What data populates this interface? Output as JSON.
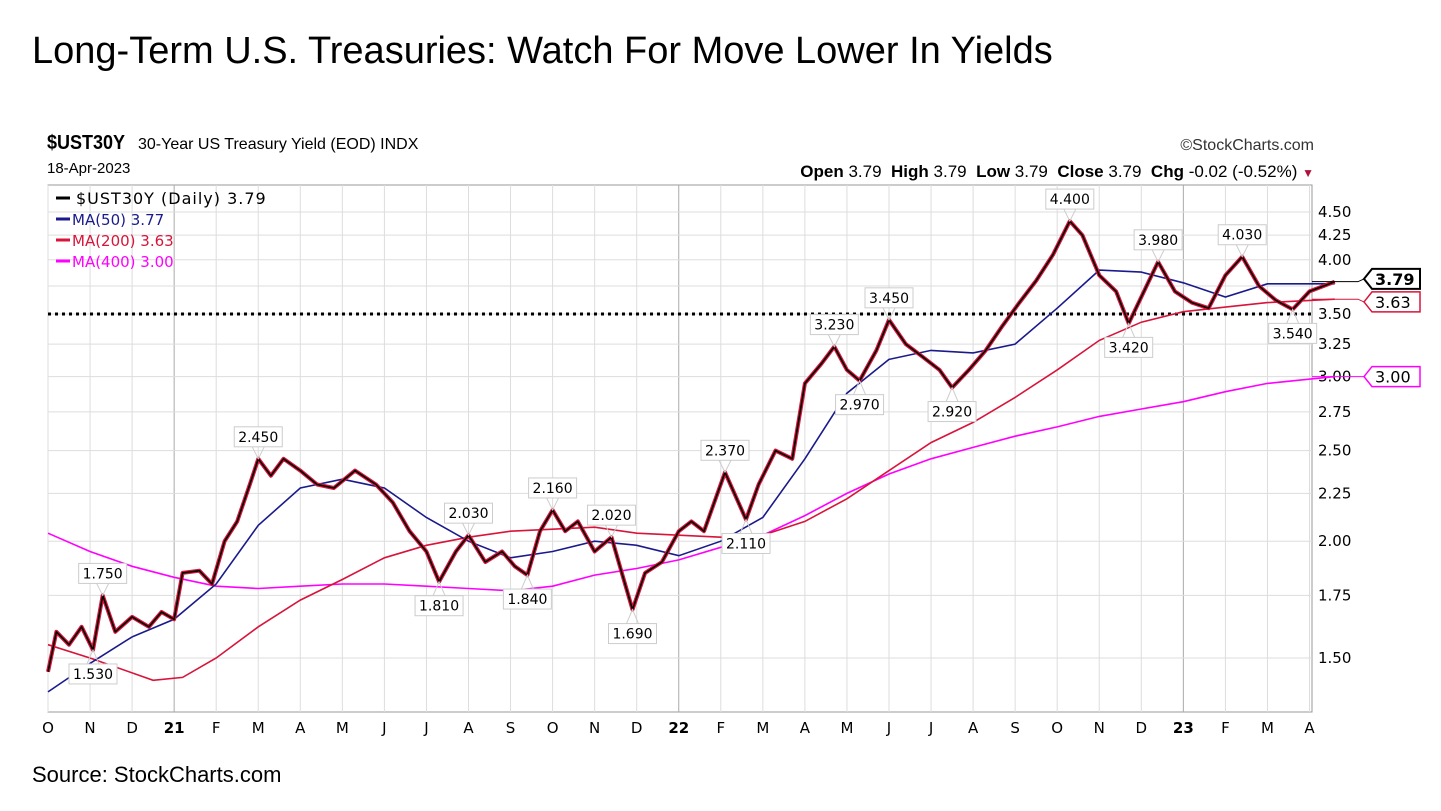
{
  "title": "Long-Term U.S. Treasuries: Watch For Move Lower In Yields",
  "source": "Source: StockCharts.com",
  "header": {
    "symbol": "$UST30Y",
    "description": "30-Year US Treasury Yield (EOD) INDX",
    "date": "18-Apr-2023",
    "brand": "©StockCharts.com",
    "open_label": "Open",
    "open": "3.79",
    "high_label": "High",
    "high": "3.79",
    "low_label": "Low",
    "low": "3.79",
    "close_label": "Close",
    "close": "3.79",
    "chg_label": "Chg",
    "chg": "-0.02 (-0.52%)"
  },
  "chart_data": {
    "type": "line",
    "yscale": "log",
    "ylim": [
      1.38,
      4.75
    ],
    "xlim": [
      0,
      31.3
    ],
    "x_unit": "months since Oct 2020",
    "grid": true,
    "legend_position": "top-left",
    "yticks": [
      1.5,
      1.75,
      2.0,
      2.25,
      2.5,
      2.75,
      3.0,
      3.25,
      3.5,
      3.75,
      4.0,
      4.25,
      4.5
    ],
    "ytick_labels": [
      "1.50",
      "1.75",
      "2.00",
      "2.25",
      "2.50",
      "2.75",
      "3.00",
      "3.25",
      "3.50",
      "",
      "4.00",
      "4.25",
      "4.50"
    ],
    "xticks": [
      {
        "m": 0,
        "label": "O"
      },
      {
        "m": 1,
        "label": "N"
      },
      {
        "m": 2,
        "label": "D"
      },
      {
        "m": 3,
        "label": "21",
        "bold": true
      },
      {
        "m": 4,
        "label": "F"
      },
      {
        "m": 5,
        "label": "M"
      },
      {
        "m": 6,
        "label": "A"
      },
      {
        "m": 7,
        "label": "M"
      },
      {
        "m": 8,
        "label": "J"
      },
      {
        "m": 9,
        "label": "J"
      },
      {
        "m": 10,
        "label": "A"
      },
      {
        "m": 11,
        "label": "S"
      },
      {
        "m": 12,
        "label": "O"
      },
      {
        "m": 13,
        "label": "N"
      },
      {
        "m": 14,
        "label": "D"
      },
      {
        "m": 15,
        "label": "22",
        "bold": true
      },
      {
        "m": 16,
        "label": "F"
      },
      {
        "m": 17,
        "label": "M"
      },
      {
        "m": 18,
        "label": "A"
      },
      {
        "m": 19,
        "label": "M"
      },
      {
        "m": 20,
        "label": "J"
      },
      {
        "m": 21,
        "label": "J"
      },
      {
        "m": 22,
        "label": "A"
      },
      {
        "m": 23,
        "label": "S"
      },
      {
        "m": 24,
        "label": "O"
      },
      {
        "m": 25,
        "label": "N"
      },
      {
        "m": 26,
        "label": "D"
      },
      {
        "m": 27,
        "label": "23",
        "bold": true
      },
      {
        "m": 28,
        "label": "F"
      },
      {
        "m": 29,
        "label": "M"
      },
      {
        "m": 30,
        "label": "A"
      }
    ],
    "reference_line": 3.5,
    "series": [
      {
        "name": "$UST30Y (Daily) 3.79",
        "color": "#000000",
        "points": [
          [
            0,
            1.45
          ],
          [
            0.2,
            1.6
          ],
          [
            0.5,
            1.55
          ],
          [
            0.8,
            1.62
          ],
          [
            1.07,
            1.53
          ],
          [
            1.3,
            1.75
          ],
          [
            1.6,
            1.6
          ],
          [
            2.0,
            1.66
          ],
          [
            2.4,
            1.62
          ],
          [
            2.7,
            1.68
          ],
          [
            3.0,
            1.65
          ],
          [
            3.2,
            1.85
          ],
          [
            3.6,
            1.86
          ],
          [
            3.9,
            1.8
          ],
          [
            4.2,
            2.0
          ],
          [
            4.5,
            2.1
          ],
          [
            4.8,
            2.3
          ],
          [
            5.0,
            2.45
          ],
          [
            5.3,
            2.35
          ],
          [
            5.6,
            2.45
          ],
          [
            6.0,
            2.38
          ],
          [
            6.4,
            2.3
          ],
          [
            6.8,
            2.28
          ],
          [
            7.3,
            2.38
          ],
          [
            7.8,
            2.3
          ],
          [
            8.2,
            2.2
          ],
          [
            8.6,
            2.05
          ],
          [
            9.0,
            1.95
          ],
          [
            9.3,
            1.81
          ],
          [
            9.7,
            1.95
          ],
          [
            10.0,
            2.03
          ],
          [
            10.4,
            1.9
          ],
          [
            10.8,
            1.95
          ],
          [
            11.1,
            1.88
          ],
          [
            11.4,
            1.84
          ],
          [
            11.7,
            2.05
          ],
          [
            12.0,
            2.16
          ],
          [
            12.3,
            2.05
          ],
          [
            12.6,
            2.1
          ],
          [
            13.0,
            1.95
          ],
          [
            13.4,
            2.02
          ],
          [
            13.6,
            1.88
          ],
          [
            13.9,
            1.69
          ],
          [
            14.2,
            1.85
          ],
          [
            14.6,
            1.9
          ],
          [
            15.0,
            2.05
          ],
          [
            15.3,
            2.1
          ],
          [
            15.6,
            2.05
          ],
          [
            16.1,
            2.37
          ],
          [
            16.6,
            2.11
          ],
          [
            16.9,
            2.3
          ],
          [
            17.3,
            2.5
          ],
          [
            17.7,
            2.45
          ],
          [
            18.0,
            2.95
          ],
          [
            18.4,
            3.1
          ],
          [
            18.7,
            3.23
          ],
          [
            19.0,
            3.05
          ],
          [
            19.3,
            2.97
          ],
          [
            19.7,
            3.2
          ],
          [
            20.0,
            3.45
          ],
          [
            20.4,
            3.25
          ],
          [
            20.8,
            3.15
          ],
          [
            21.2,
            3.05
          ],
          [
            21.5,
            2.92
          ],
          [
            21.9,
            3.05
          ],
          [
            22.3,
            3.2
          ],
          [
            22.7,
            3.4
          ],
          [
            23.1,
            3.6
          ],
          [
            23.5,
            3.8
          ],
          [
            23.9,
            4.05
          ],
          [
            24.3,
            4.4
          ],
          [
            24.6,
            4.25
          ],
          [
            25.0,
            3.85
          ],
          [
            25.4,
            3.7
          ],
          [
            25.7,
            3.42
          ],
          [
            26.0,
            3.65
          ],
          [
            26.4,
            3.98
          ],
          [
            26.8,
            3.7
          ],
          [
            27.2,
            3.6
          ],
          [
            27.6,
            3.55
          ],
          [
            28.0,
            3.85
          ],
          [
            28.4,
            4.03
          ],
          [
            28.8,
            3.75
          ],
          [
            29.2,
            3.62
          ],
          [
            29.6,
            3.54
          ],
          [
            30.0,
            3.7
          ],
          [
            30.6,
            3.79
          ]
        ]
      },
      {
        "name": "MA(50) 3.77",
        "color": "#1a1a8c",
        "points": [
          [
            0,
            1.38
          ],
          [
            1,
            1.48
          ],
          [
            2,
            1.58
          ],
          [
            3,
            1.65
          ],
          [
            4,
            1.8
          ],
          [
            5,
            2.08
          ],
          [
            6,
            2.28
          ],
          [
            7,
            2.33
          ],
          [
            8,
            2.28
          ],
          [
            9,
            2.12
          ],
          [
            10,
            2.0
          ],
          [
            11,
            1.92
          ],
          [
            12,
            1.95
          ],
          [
            13,
            2.0
          ],
          [
            14,
            1.98
          ],
          [
            15,
            1.93
          ],
          [
            16,
            2.0
          ],
          [
            17,
            2.12
          ],
          [
            18,
            2.45
          ],
          [
            19,
            2.88
          ],
          [
            20,
            3.13
          ],
          [
            21,
            3.2
          ],
          [
            22,
            3.18
          ],
          [
            23,
            3.25
          ],
          [
            24,
            3.55
          ],
          [
            25,
            3.9
          ],
          [
            26,
            3.88
          ],
          [
            27,
            3.78
          ],
          [
            28,
            3.65
          ],
          [
            29,
            3.77
          ],
          [
            30.6,
            3.77
          ]
        ]
      },
      {
        "name": "MA(200) 3.63",
        "color": "#d8143a",
        "points": [
          [
            0,
            1.55
          ],
          [
            1,
            1.5
          ],
          [
            2.5,
            1.42
          ],
          [
            3.2,
            1.43
          ],
          [
            4,
            1.5
          ],
          [
            5,
            1.62
          ],
          [
            6,
            1.73
          ],
          [
            7,
            1.82
          ],
          [
            8,
            1.92
          ],
          [
            9,
            1.98
          ],
          [
            10,
            2.02
          ],
          [
            11,
            2.05
          ],
          [
            12,
            2.06
          ],
          [
            13,
            2.07
          ],
          [
            14,
            2.04
          ],
          [
            15,
            2.03
          ],
          [
            16,
            2.02
          ],
          [
            17,
            2.03
          ],
          [
            18,
            2.1
          ],
          [
            19,
            2.22
          ],
          [
            20,
            2.38
          ],
          [
            21,
            2.55
          ],
          [
            22,
            2.68
          ],
          [
            23,
            2.85
          ],
          [
            24,
            3.05
          ],
          [
            25,
            3.28
          ],
          [
            26,
            3.43
          ],
          [
            27,
            3.52
          ],
          [
            28,
            3.56
          ],
          [
            29,
            3.6
          ],
          [
            30.6,
            3.63
          ]
        ]
      },
      {
        "name": "MA(400) 3.00",
        "color": "#ff00ff",
        "points": [
          [
            0,
            2.04
          ],
          [
            1,
            1.95
          ],
          [
            2,
            1.88
          ],
          [
            3,
            1.83
          ],
          [
            4,
            1.79
          ],
          [
            5,
            1.78
          ],
          [
            6,
            1.79
          ],
          [
            7,
            1.8
          ],
          [
            8,
            1.8
          ],
          [
            9,
            1.79
          ],
          [
            10,
            1.78
          ],
          [
            11,
            1.77
          ],
          [
            12,
            1.79
          ],
          [
            13,
            1.84
          ],
          [
            14,
            1.87
          ],
          [
            15,
            1.91
          ],
          [
            16,
            1.97
          ],
          [
            17,
            2.03
          ],
          [
            18,
            2.13
          ],
          [
            19,
            2.25
          ],
          [
            20,
            2.36
          ],
          [
            21,
            2.45
          ],
          [
            22,
            2.52
          ],
          [
            23,
            2.59
          ],
          [
            24,
            2.65
          ],
          [
            25,
            2.72
          ],
          [
            26,
            2.77
          ],
          [
            27,
            2.82
          ],
          [
            28,
            2.89
          ],
          [
            29,
            2.95
          ],
          [
            30.6,
            3.0
          ]
        ]
      }
    ],
    "annotations": [
      {
        "m": 1.3,
        "v": 1.75,
        "label": "1.750",
        "pos": "above"
      },
      {
        "m": 1.07,
        "v": 1.53,
        "label": "1.530",
        "pos": "below"
      },
      {
        "m": 5.0,
        "v": 2.45,
        "label": "2.450",
        "pos": "above"
      },
      {
        "m": 9.3,
        "v": 1.81,
        "label": "1.810",
        "pos": "below"
      },
      {
        "m": 10.0,
        "v": 2.03,
        "label": "2.030",
        "pos": "above"
      },
      {
        "m": 11.4,
        "v": 1.84,
        "label": "1.840",
        "pos": "below"
      },
      {
        "m": 12.0,
        "v": 2.16,
        "label": "2.160",
        "pos": "above"
      },
      {
        "m": 13.4,
        "v": 2.02,
        "label": "2.020",
        "pos": "above"
      },
      {
        "m": 13.9,
        "v": 1.69,
        "label": "1.690",
        "pos": "below"
      },
      {
        "m": 16.1,
        "v": 2.37,
        "label": "2.370",
        "pos": "above"
      },
      {
        "m": 16.6,
        "v": 2.11,
        "label": "2.110",
        "pos": "below"
      },
      {
        "m": 18.7,
        "v": 3.23,
        "label": "3.230",
        "pos": "above"
      },
      {
        "m": 19.3,
        "v": 2.97,
        "label": "2.970",
        "pos": "below"
      },
      {
        "m": 20.0,
        "v": 3.45,
        "label": "3.450",
        "pos": "above"
      },
      {
        "m": 21.5,
        "v": 2.92,
        "label": "2.920",
        "pos": "below"
      },
      {
        "m": 24.3,
        "v": 4.4,
        "label": "4.400",
        "pos": "above"
      },
      {
        "m": 25.7,
        "v": 3.42,
        "label": "3.420",
        "pos": "below"
      },
      {
        "m": 26.4,
        "v": 3.98,
        "label": "3.980",
        "pos": "above"
      },
      {
        "m": 28.4,
        "v": 4.03,
        "label": "4.030",
        "pos": "above"
      },
      {
        "m": 29.6,
        "v": 3.54,
        "label": "3.540",
        "pos": "below"
      }
    ],
    "last_value_tags": [
      {
        "v": 3.79,
        "label": "3.79",
        "color": "#000000",
        "bold": true
      },
      {
        "v": 3.63,
        "label": "3.63",
        "color": "#d8143a"
      },
      {
        "v": 3.0,
        "label": "3.00",
        "color": "#ff00ff"
      }
    ]
  }
}
